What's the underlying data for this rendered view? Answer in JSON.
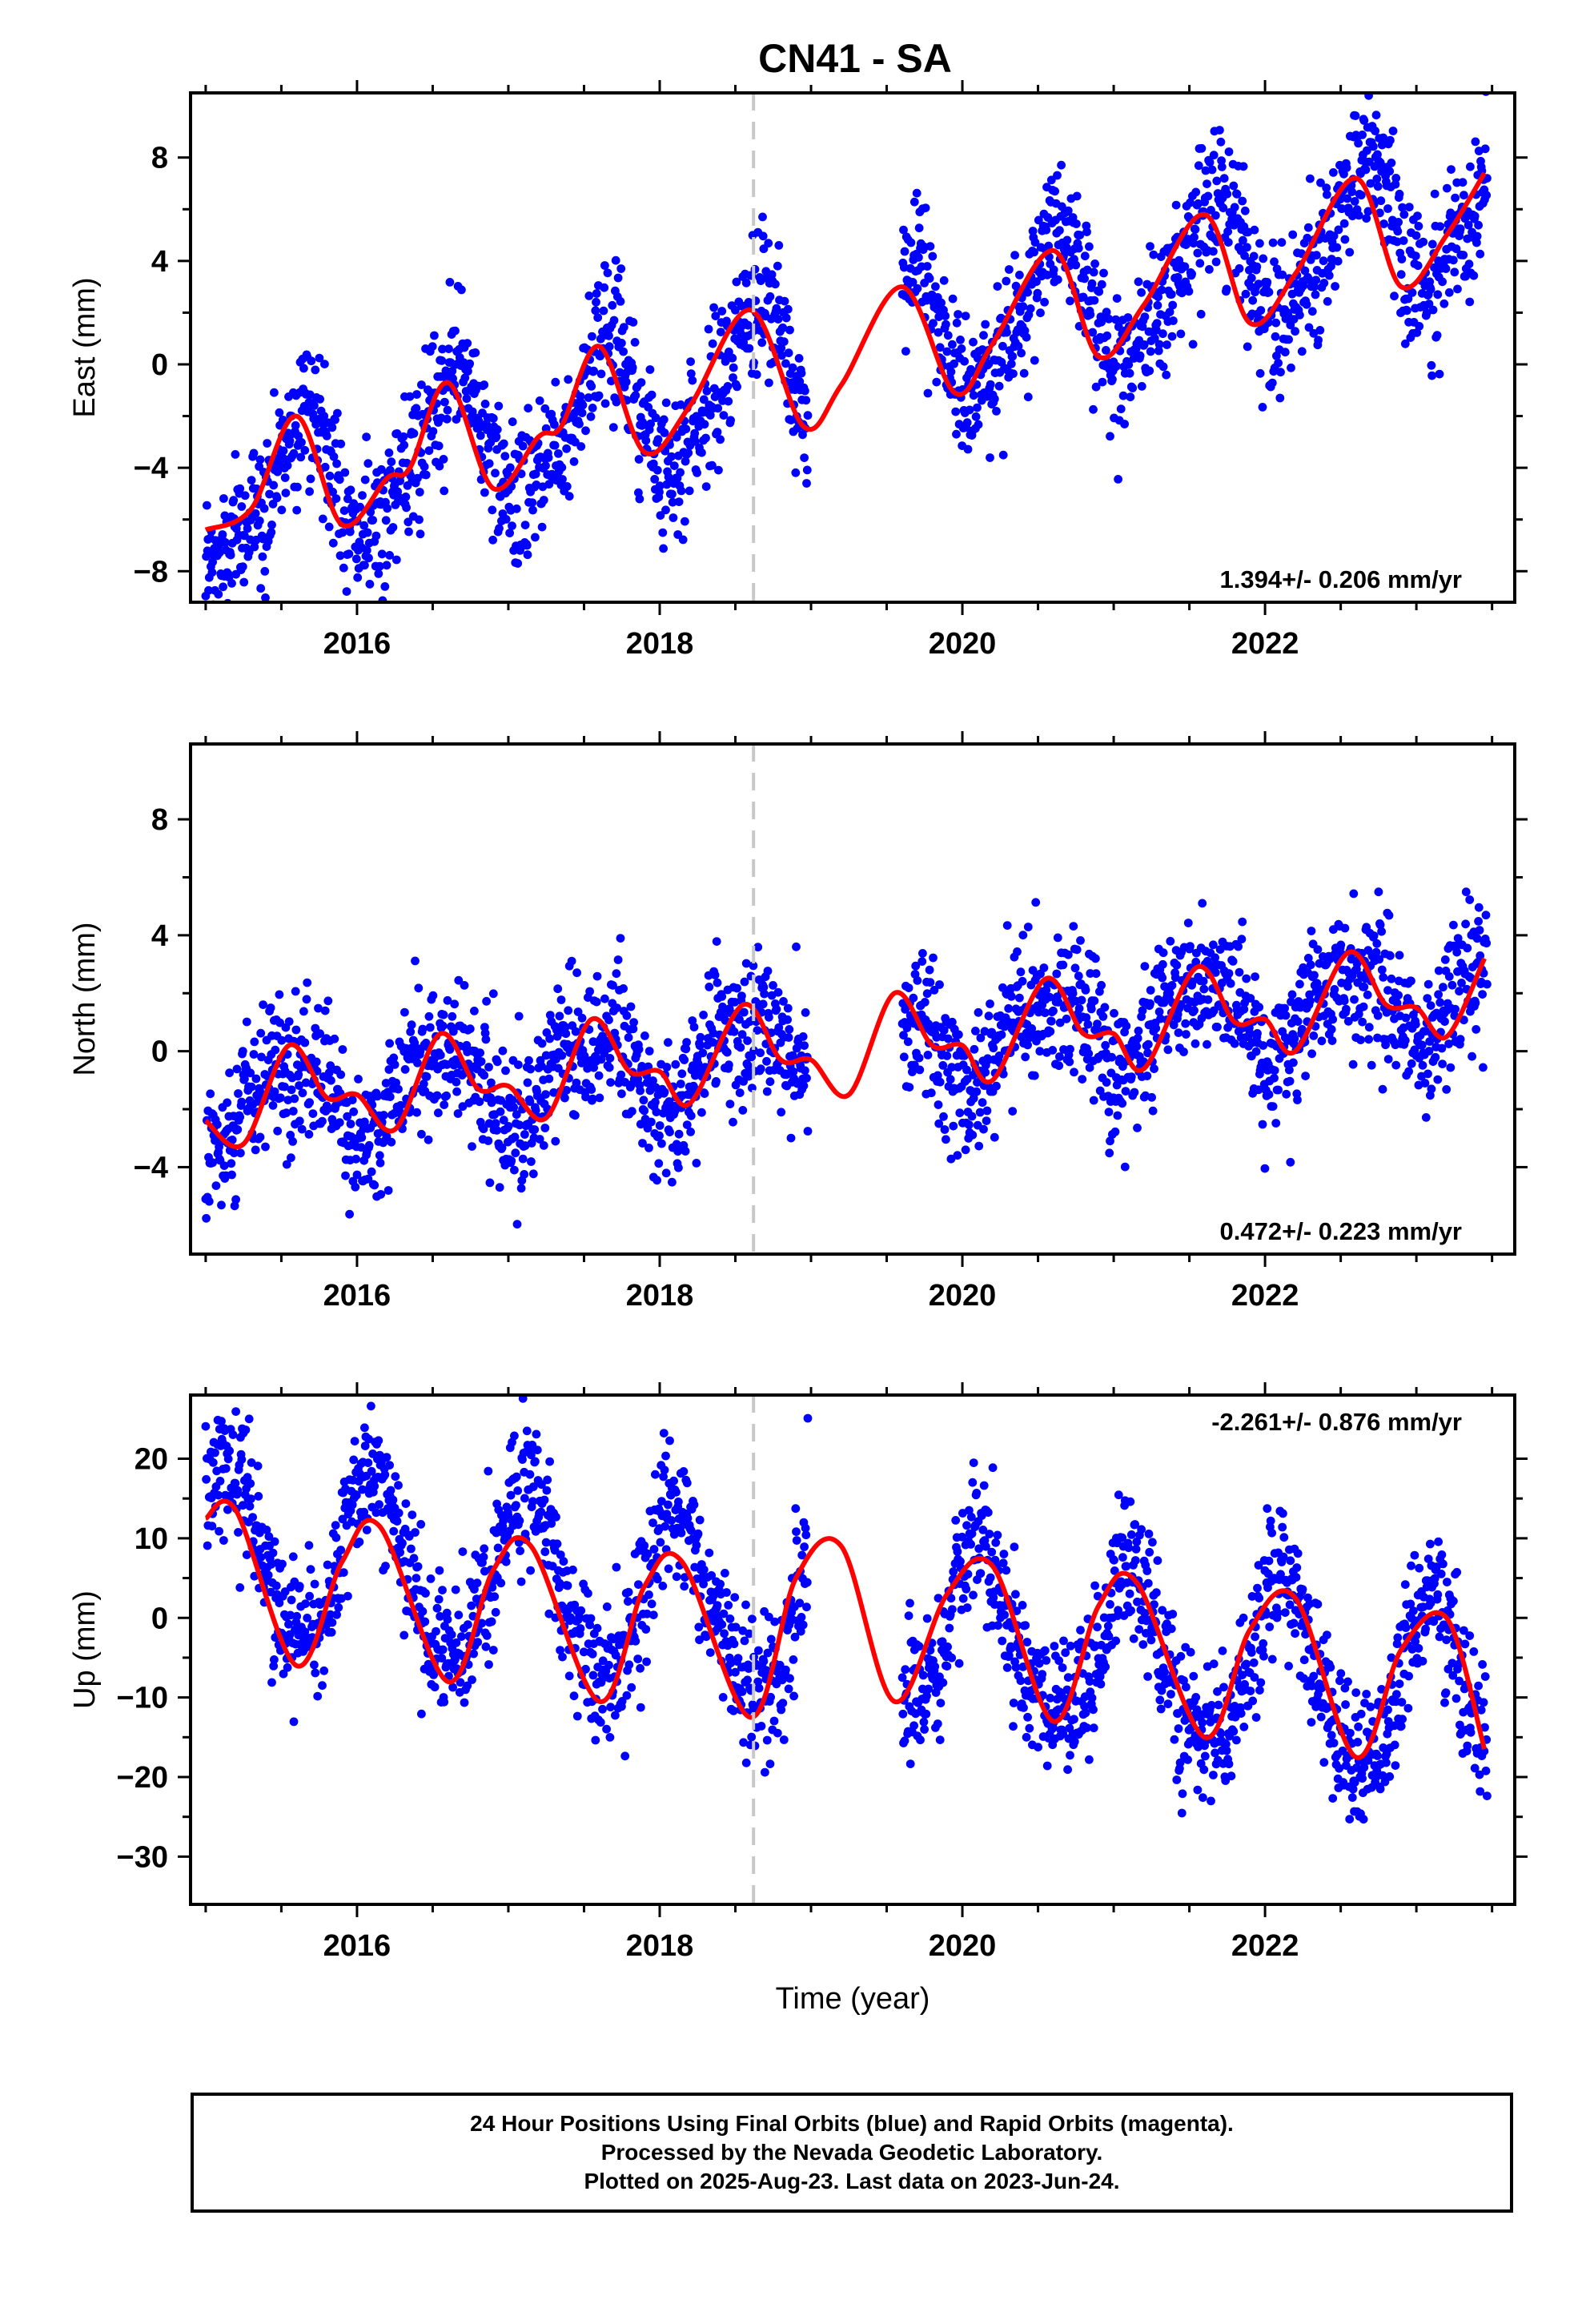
{
  "title": "CN41 - SA",
  "colors": {
    "points": "#0000ff",
    "fit": "#ff0000",
    "marker": "#c8c8c8"
  },
  "chart_data": [
    {
      "type": "scatter",
      "panel": "east",
      "ylabel": "East (mm)",
      "xlabel": "",
      "xlim": [
        2014.9,
        2023.65
      ],
      "ylim": [
        -9.2,
        10.5
      ],
      "xticks": [
        2016,
        2018,
        2020,
        2022
      ],
      "xtick_labels": [
        "2016",
        "2018",
        "2020",
        "2022"
      ],
      "yticks": [
        -8,
        -4,
        0,
        4,
        8
      ],
      "ytick_labels": [
        "−8",
        "−4",
        "0",
        "4",
        "8"
      ],
      "rate_label": "1.394+/- 0.206 mm/yr",
      "rate_position": "bottom-right",
      "marker_x": 2018.62,
      "trend": {
        "slope": 1.394,
        "value_at_2019": 0.0
      },
      "seasonal": {
        "annual_amp": 2.6,
        "annual_phase_peak": 0.62,
        "semiannual_amp": 0.7,
        "semiannual_phase_peak": 0.2
      },
      "scatter_sd": 1.4,
      "gap": [
        2018.98,
        2019.6
      ],
      "fit": {
        "x": [
          2015.0,
          2015.3,
          2015.6,
          2015.9,
          2016.2,
          2016.35,
          2016.6,
          2016.9,
          2017.2,
          2017.35,
          2017.6,
          2017.9,
          2018.2,
          2018.6,
          2018.95,
          2019.2,
          2019.6,
          2019.95,
          2020.2,
          2020.6,
          2020.9,
          2021.2,
          2021.6,
          2021.9,
          2022.2,
          2022.6,
          2022.9,
          2023.2,
          2023.45
        ],
        "y": [
          -6.4,
          -5.6,
          -2.0,
          -6.2,
          -4.4,
          -4.0,
          -0.7,
          -4.8,
          -2.8,
          -2.4,
          0.7,
          -3.4,
          -1.6,
          2.1,
          -2.4,
          -0.8,
          3.0,
          -1.1,
          0.8,
          4.4,
          0.3,
          2.3,
          5.8,
          1.6,
          3.5,
          7.2,
          3.0,
          5.0,
          7.4
        ]
      }
    },
    {
      "type": "scatter",
      "panel": "north",
      "ylabel": "North (mm)",
      "xlabel": "",
      "xlim": [
        2014.9,
        2023.65
      ],
      "ylim": [
        -7.0,
        10.6
      ],
      "xticks": [
        2016,
        2018,
        2020,
        2022
      ],
      "xtick_labels": [
        "2016",
        "2018",
        "2020",
        "2022"
      ],
      "yticks": [
        -4,
        0,
        4,
        8
      ],
      "ytick_labels": [
        "−4",
        "0",
        "4",
        "8"
      ],
      "rate_label": "0.472+/- 0.223 mm/yr",
      "rate_position": "bottom-right",
      "marker_x": 2018.62,
      "trend": {
        "slope": 0.472,
        "value_at_2019": 0.0
      },
      "seasonal": {
        "annual_amp": 1.3,
        "annual_phase_peak": 0.55,
        "semiannual_amp": 0.4,
        "semiannual_phase_peak": 0.3
      },
      "scatter_sd": 1.2,
      "gap": [
        2018.98,
        2019.6
      ],
      "fit": {
        "x": [
          2015.0,
          2015.25,
          2015.55,
          2015.8,
          2016.0,
          2016.25,
          2016.55,
          2016.8,
          2017.0,
          2017.25,
          2017.55,
          2017.8,
          2018.0,
          2018.2,
          2018.55,
          2018.8,
          2019.0,
          2019.25,
          2019.55,
          2019.8,
          2020.0,
          2020.2,
          2020.55,
          2020.8,
          2021.0,
          2021.2,
          2021.55,
          2021.8,
          2022.0,
          2022.2,
          2022.55,
          2022.8,
          2023.0,
          2023.2,
          2023.45
        ],
        "y": [
          -2.4,
          -3.2,
          0.2,
          -1.6,
          -1.5,
          -2.7,
          0.6,
          -1.3,
          -1.2,
          -2.3,
          1.1,
          -0.7,
          -0.7,
          -1.8,
          1.6,
          -0.3,
          -0.3,
          -1.5,
          2.0,
          0.2,
          0.2,
          -1.0,
          2.5,
          0.6,
          0.6,
          -0.6,
          2.9,
          1.0,
          1.1,
          0.0,
          3.4,
          1.6,
          1.5,
          0.5,
          3.2
        ]
      }
    },
    {
      "type": "scatter",
      "panel": "up",
      "ylabel": "Up (mm)",
      "xlabel": "Time (year)",
      "xlim": [
        2014.9,
        2023.65
      ],
      "ylim": [
        -36,
        28
      ],
      "xticks": [
        2016,
        2018,
        2020,
        2022
      ],
      "xtick_labels": [
        "2016",
        "2018",
        "2020",
        "2022"
      ],
      "yticks": [
        -30,
        -20,
        -10,
        0,
        10,
        20
      ],
      "ytick_labels": [
        "−30",
        "−20",
        "−10",
        "0",
        "10",
        "20"
      ],
      "rate_label": "-2.261+/- 0.876 mm/yr",
      "rate_position": "top-right",
      "marker_x": 2018.62,
      "trend": {
        "slope": -2.261,
        "value_at_2019": 0.0
      },
      "seasonal": {
        "annual_amp": 10.5,
        "annual_phase_peak": 0.12,
        "semiannual_amp": 1.5,
        "semiannual_phase_peak": 0.1
      },
      "scatter_sd": 4.5,
      "gap": [
        2018.98,
        2019.6
      ],
      "fit": {
        "x": [
          2015.0,
          2015.2,
          2015.6,
          2015.9,
          2016.15,
          2016.6,
          2016.9,
          2017.15,
          2017.6,
          2017.9,
          2018.15,
          2018.6,
          2018.9,
          2019.2,
          2019.55,
          2019.9,
          2020.2,
          2020.6,
          2020.9,
          2021.15,
          2021.6,
          2021.9,
          2022.2,
          2022.6,
          2022.9,
          2023.2,
          2023.45
        ],
        "y": [
          12.5,
          13.5,
          -6.0,
          7.0,
          11.5,
          -8.0,
          6.0,
          9.0,
          -10.5,
          4.0,
          7.0,
          -12.5,
          5.0,
          9.0,
          -10.5,
          3.0,
          6.5,
          -13.0,
          1.5,
          4.5,
          -15.0,
          -1.5,
          2.5,
          -17.5,
          -4.0,
          0.0,
          -16.5
        ]
      }
    }
  ],
  "footer": {
    "line1": "24 Hour Positions Using Final Orbits (blue) and Rapid Orbits (magenta).",
    "line2": "Processed by the Nevada Geodetic Laboratory.",
    "line3": "Plotted on 2025-Aug-23. Last data on 2023-Jun-24."
  }
}
